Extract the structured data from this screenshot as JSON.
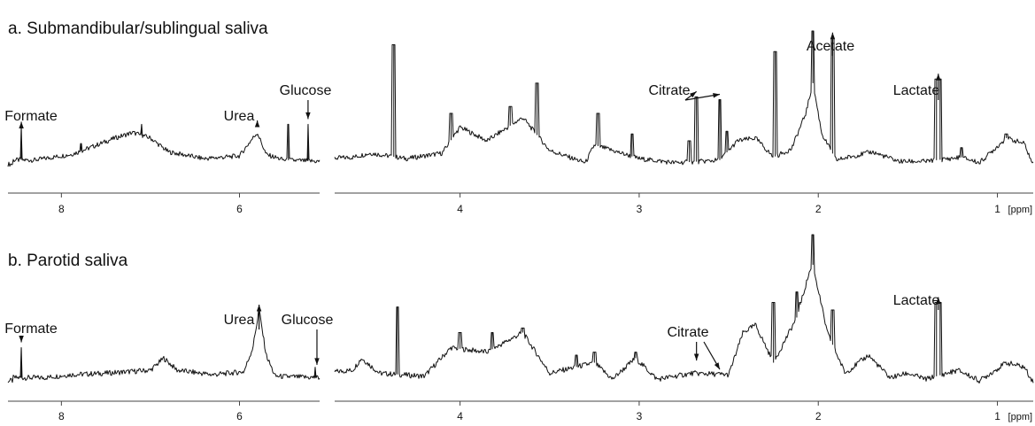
{
  "chart_data": [
    {
      "type": "line",
      "title": "a. Submandibular/sublingual saliva",
      "xlabel": "[ppm]",
      "ylabel": "",
      "x_reversed": true,
      "ranges": [
        {
          "xlim": [
            8.6,
            5.1
          ],
          "ticks": [
            8,
            6
          ],
          "tick_labels": [
            "8",
            "6"
          ]
        },
        {
          "xlim": [
            4.7,
            0.8
          ],
          "ticks": [
            4,
            3,
            2,
            1
          ],
          "tick_labels": [
            "4",
            "3",
            "2",
            "1"
          ]
        }
      ],
      "baseline": [
        [
          8.55,
          0.06
        ],
        [
          8.3,
          0.06
        ],
        [
          7.9,
          0.1
        ],
        [
          7.8,
          0.12
        ],
        [
          7.4,
          0.22
        ],
        [
          7.2,
          0.26
        ],
        [
          7.0,
          0.22
        ],
        [
          6.8,
          0.12
        ],
        [
          6.4,
          0.07
        ],
        [
          6.0,
          0.09
        ],
        [
          5.85,
          0.22
        ],
        [
          5.8,
          0.26
        ],
        [
          5.7,
          0.1
        ],
        [
          5.5,
          0.06
        ],
        [
          5.1,
          0.05
        ],
        [
          4.6,
          0.08
        ],
        [
          4.5,
          0.11
        ],
        [
          4.3,
          0.07
        ],
        [
          4.1,
          0.11
        ],
        [
          4.0,
          0.3
        ],
        [
          3.85,
          0.2
        ],
        [
          3.65,
          0.37
        ],
        [
          3.5,
          0.13
        ],
        [
          3.3,
          0.04
        ],
        [
          3.25,
          0.17
        ],
        [
          3.0,
          0.07
        ],
        [
          2.8,
          0.04
        ],
        [
          2.65,
          0.05
        ],
        [
          2.55,
          0.06
        ],
        [
          2.45,
          0.2
        ],
        [
          2.35,
          0.22
        ],
        [
          2.25,
          0.08
        ],
        [
          2.15,
          0.14
        ],
        [
          2.07,
          0.4
        ],
        [
          2.03,
          0.62
        ],
        [
          1.98,
          0.25
        ],
        [
          1.9,
          0.06
        ],
        [
          1.7,
          0.12
        ],
        [
          1.55,
          0.05
        ],
        [
          1.4,
          0.05
        ],
        [
          1.2,
          0.08
        ],
        [
          1.1,
          0.04
        ],
        [
          0.95,
          0.22
        ],
        [
          0.85,
          0.18
        ],
        [
          0.8,
          0.02
        ]
      ],
      "peaks": [
        [
          8.45,
          0.3
        ],
        [
          7.78,
          0.18
        ],
        [
          7.1,
          0.32
        ],
        [
          5.45,
          0.32
        ],
        [
          5.23,
          0.32
        ],
        [
          4.37,
          0.9
        ],
        [
          4.05,
          0.4
        ],
        [
          3.72,
          0.45
        ],
        [
          3.57,
          0.62
        ],
        [
          3.23,
          0.4
        ],
        [
          3.04,
          0.25
        ],
        [
          2.72,
          0.2
        ],
        [
          2.68,
          0.52
        ],
        [
          2.55,
          0.5
        ],
        [
          2.51,
          0.27
        ],
        [
          2.24,
          0.85
        ],
        [
          2.03,
          1.0
        ],
        [
          1.92,
          0.95
        ],
        [
          1.34,
          0.65
        ],
        [
          1.32,
          0.65
        ],
        [
          1.2,
          0.15
        ],
        [
          0.95,
          0.25
        ]
      ],
      "annotations": [
        {
          "label": "Formate",
          "ppm": 8.45
        },
        {
          "label": "Urea",
          "ppm": 5.8
        },
        {
          "label": "Glucose",
          "ppm": 5.23
        },
        {
          "label": "Citrate",
          "ppm": 2.68
        },
        {
          "label": "Citrate",
          "ppm": 2.55
        },
        {
          "label": "Acetate",
          "ppm": 1.92
        },
        {
          "label": "Lactate",
          "ppm": 1.33
        }
      ]
    },
    {
      "type": "line",
      "title": "b. Parotid saliva",
      "xlabel": "[ppm]",
      "ylabel": "",
      "x_reversed": true,
      "ranges": [
        {
          "xlim": [
            8.6,
            5.1
          ],
          "ticks": [
            8,
            6
          ],
          "tick_labels": [
            "8",
            "6"
          ]
        },
        {
          "xlim": [
            4.7,
            0.8
          ],
          "ticks": [
            4,
            3,
            2,
            1
          ],
          "tick_labels": [
            "4",
            "3",
            "2",
            "1"
          ]
        }
      ],
      "baseline": [
        [
          8.55,
          0.05
        ],
        [
          8.2,
          0.05
        ],
        [
          7.9,
          0.07
        ],
        [
          7.5,
          0.08
        ],
        [
          7.0,
          0.1
        ],
        [
          6.85,
          0.18
        ],
        [
          6.7,
          0.1
        ],
        [
          6.3,
          0.07
        ],
        [
          5.95,
          0.09
        ],
        [
          5.85,
          0.25
        ],
        [
          5.78,
          0.5
        ],
        [
          5.7,
          0.2
        ],
        [
          5.6,
          0.06
        ],
        [
          5.1,
          0.05
        ],
        [
          4.6,
          0.1
        ],
        [
          4.55,
          0.18
        ],
        [
          4.45,
          0.08
        ],
        [
          4.2,
          0.06
        ],
        [
          4.05,
          0.25
        ],
        [
          3.85,
          0.22
        ],
        [
          3.65,
          0.35
        ],
        [
          3.5,
          0.08
        ],
        [
          3.25,
          0.15
        ],
        [
          3.15,
          0.04
        ],
        [
          3.02,
          0.18
        ],
        [
          2.9,
          0.04
        ],
        [
          2.7,
          0.08
        ],
        [
          2.5,
          0.07
        ],
        [
          2.42,
          0.35
        ],
        [
          2.35,
          0.4
        ],
        [
          2.25,
          0.15
        ],
        [
          2.12,
          0.45
        ],
        [
          2.05,
          0.75
        ],
        [
          2.03,
          0.8
        ],
        [
          1.95,
          0.35
        ],
        [
          1.85,
          0.08
        ],
        [
          1.72,
          0.2
        ],
        [
          1.6,
          0.05
        ],
        [
          1.5,
          0.08
        ],
        [
          1.4,
          0.04
        ],
        [
          1.22,
          0.1
        ],
        [
          1.1,
          0.03
        ],
        [
          0.95,
          0.15
        ],
        [
          0.85,
          0.12
        ],
        [
          0.8,
          0.02
        ]
      ],
      "peaks": [
        [
          8.45,
          0.25
        ],
        [
          5.78,
          0.5
        ],
        [
          5.15,
          0.12
        ],
        [
          4.35,
          0.52
        ],
        [
          4.0,
          0.35
        ],
        [
          3.82,
          0.35
        ],
        [
          3.65,
          0.38
        ],
        [
          3.35,
          0.2
        ],
        [
          3.25,
          0.22
        ],
        [
          3.02,
          0.22
        ],
        [
          2.55,
          0.07
        ],
        [
          2.25,
          0.55
        ],
        [
          2.12,
          0.62
        ],
        [
          2.1,
          0.55
        ],
        [
          2.03,
          1.0
        ],
        [
          1.92,
          0.5
        ],
        [
          1.34,
          0.55
        ],
        [
          1.32,
          0.55
        ]
      ],
      "annotations": [
        {
          "label": "Formate",
          "ppm": 8.45
        },
        {
          "label": "Urea",
          "ppm": 5.78
        },
        {
          "label": "Glucose",
          "ppm": 5.13
        },
        {
          "label": "Citrate",
          "ppm": 2.68
        },
        {
          "label": "Citrate",
          "ppm": 2.55
        },
        {
          "label": "Lactate",
          "ppm": 1.33
        }
      ]
    }
  ]
}
